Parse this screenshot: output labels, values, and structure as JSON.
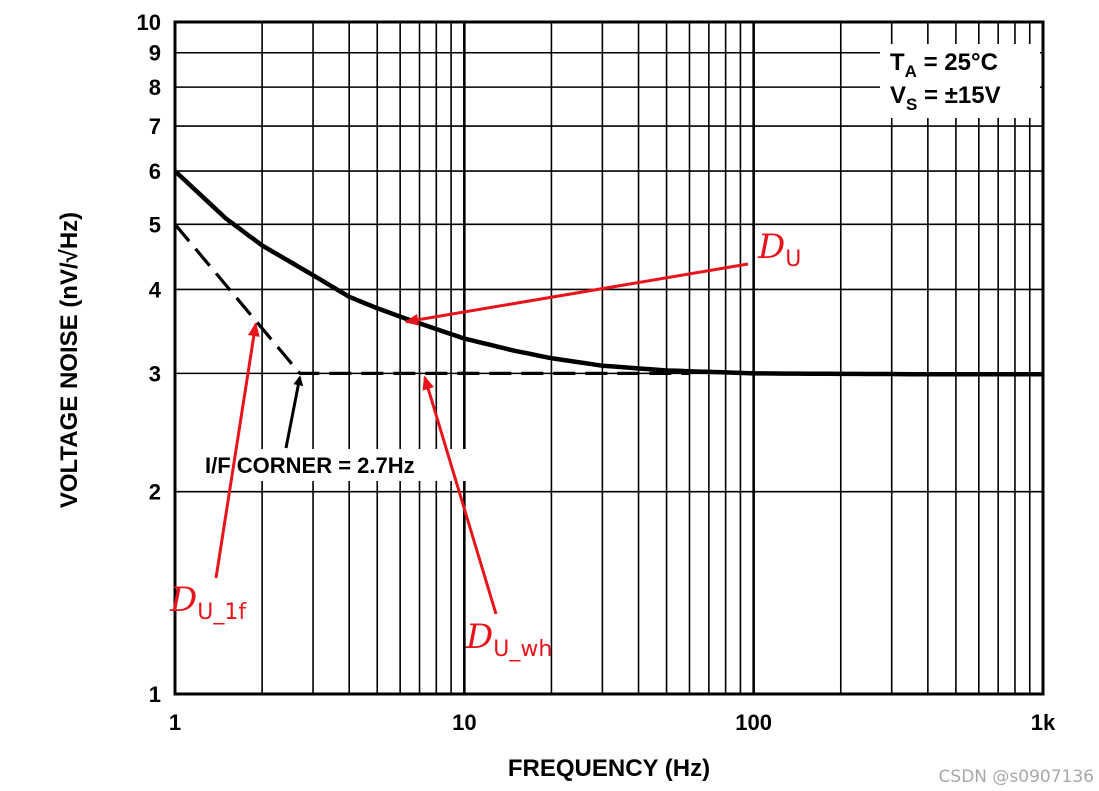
{
  "chart_data": {
    "type": "line",
    "xlabel": "FREQUENCY (Hz)",
    "ylabel": "VOLTAGE NOISE (nV/√Hz)",
    "x_scale": "log",
    "y_scale": "log",
    "xlim": [
      1,
      1000
    ],
    "ylim": [
      1,
      10
    ],
    "grid": true,
    "x_tick_labels": [
      {
        "value": 1,
        "label": "1"
      },
      {
        "value": 10,
        "label": "10"
      },
      {
        "value": 100,
        "label": "100"
      },
      {
        "value": 1000,
        "label": "1k"
      }
    ],
    "y_tick_labels": [
      {
        "value": 1,
        "label": "1"
      },
      {
        "value": 2,
        "label": "2"
      },
      {
        "value": 3,
        "label": "3"
      },
      {
        "value": 4,
        "label": "4"
      },
      {
        "value": 5,
        "label": "5"
      },
      {
        "value": 6,
        "label": "6"
      },
      {
        "value": 7,
        "label": "7"
      },
      {
        "value": 8,
        "label": "8"
      },
      {
        "value": 9,
        "label": "9"
      },
      {
        "value": 10,
        "label": "10"
      }
    ],
    "series": [
      {
        "style": "solid",
        "color": "#000000",
        "x": [
          1,
          1.5,
          2,
          3,
          4,
          5,
          6.5,
          10,
          15,
          20,
          30,
          50,
          100,
          200,
          500,
          1000
        ],
        "y": [
          6.0,
          5.1,
          4.65,
          4.2,
          3.9,
          3.75,
          3.6,
          3.38,
          3.24,
          3.16,
          3.08,
          3.03,
          3.0,
          2.995,
          2.99,
          2.99
        ]
      },
      {
        "style": "dashed",
        "color": "#000000",
        "x": [
          1,
          2.7,
          60
        ],
        "y": [
          5.0,
          3.0,
          3.0
        ]
      }
    ],
    "conditions": {
      "ta_main": "T",
      "ta_sub": "A",
      "ta_value": " = 25°C",
      "vs_main": "V",
      "vs_sub": "S",
      "vs_value": " = ±15V"
    },
    "annotations": [
      {
        "id": "corner",
        "text": "I/F CORNER = 2.7Hz",
        "color": "#000000",
        "arrow_to": {
          "x": 2.7,
          "y": 3.0
        }
      },
      {
        "id": "du",
        "main": "D",
        "sub": "U",
        "color": "#e8141b",
        "arrow_to": {
          "x": 6.3,
          "y": 3.63
        }
      },
      {
        "id": "du-1f",
        "main": "D",
        "sub": "U_1f",
        "color": "#e8141b",
        "arrow_to": {
          "x": 1.9,
          "y": 3.6
        }
      },
      {
        "id": "du-wh",
        "main": "D",
        "sub": "U_wh",
        "color": "#e8141b",
        "arrow_to": {
          "x": 7.3,
          "y": 3.0
        }
      }
    ]
  },
  "watermark": "CSDN @s0907136"
}
